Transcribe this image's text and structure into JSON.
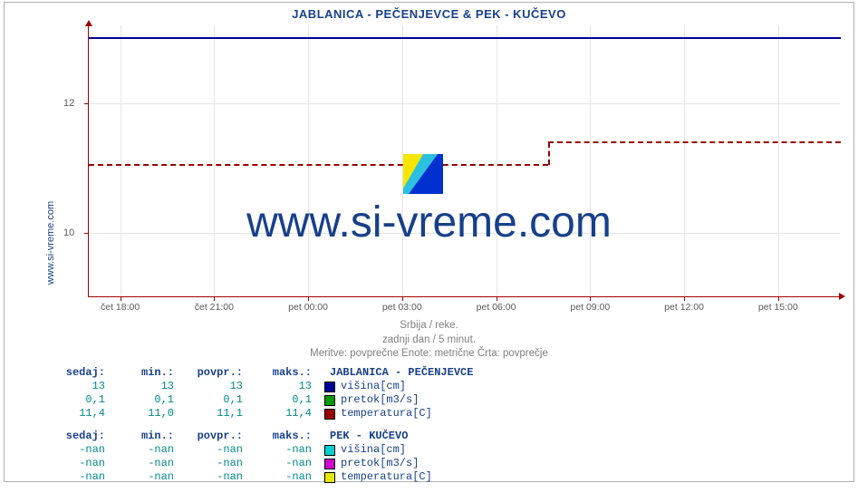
{
  "title": "JABLANICA -  PEČENJEVCE  &  PEK -  KUČEVO",
  "ylabel_side": "www.si-vreme.com",
  "watermark_text": "www.si-vreme.com",
  "watermark_colors": {
    "yellow": "#f7e600",
    "cyan": "#2cc0e0",
    "blue": "#0030cf"
  },
  "subtitle": {
    "line1": "Srbija / reke.",
    "line2": "zadnji dan / 5 minut.",
    "line3": "Meritve: povprečne  Enote: metrične  Črta: povprečje"
  },
  "plot": {
    "y": {
      "min": 9,
      "max": 13.2,
      "ticks": [
        10,
        12
      ],
      "tick_labels": [
        "10",
        "12"
      ]
    },
    "x": {
      "min": 0,
      "max": 1440,
      "ticks": [
        60,
        240,
        420,
        600,
        780,
        960,
        1140,
        1320
      ],
      "tick_labels": [
        "čet 18:00",
        "čet 21:00",
        "pet 00:00",
        "pet 03:00",
        "pet 06:00",
        "pet 09:00",
        "pet 12:00",
        "pet 15:00"
      ]
    },
    "grid_color": "#e6e6e6",
    "axis_color": "#a00000",
    "series": [
      {
        "name": "visina-line",
        "color": "#000099",
        "style": "solid",
        "segments": [
          {
            "x0": 0,
            "x1": 1440,
            "y": 13
          }
        ]
      },
      {
        "name": "temperatura-line",
        "color": "#990000",
        "style": "dashed",
        "segments": [
          {
            "x0": 0,
            "x1": 880,
            "y": 11.05
          },
          {
            "x0": 880,
            "x1": 1440,
            "y": 11.4
          }
        ]
      }
    ]
  },
  "columns": [
    "sedaj:",
    "min.:",
    "povpr.:",
    "maks.:"
  ],
  "stations": [
    {
      "name": "JABLANICA -  PEČENJEVCE",
      "rows": [
        {
          "vals": [
            "13",
            "13",
            "13",
            "13"
          ],
          "swatch": "#000099",
          "label": "višina[cm]"
        },
        {
          "vals": [
            "0,1",
            "0,1",
            "0,1",
            "0,1"
          ],
          "swatch": "#009900",
          "label": "pretok[m3/s]"
        },
        {
          "vals": [
            "11,4",
            "11,0",
            "11,1",
            "11,4"
          ],
          "swatch": "#990000",
          "label": "temperatura[C]"
        }
      ]
    },
    {
      "name": "PEK -  KUČEVO",
      "rows": [
        {
          "vals": [
            "-nan",
            "-nan",
            "-nan",
            "-nan"
          ],
          "swatch": "#00d0d0",
          "label": "višina[cm]"
        },
        {
          "vals": [
            "-nan",
            "-nan",
            "-nan",
            "-nan"
          ],
          "swatch": "#d000d0",
          "label": "pretok[m3/s]"
        },
        {
          "vals": [
            "-nan",
            "-nan",
            "-nan",
            "-nan"
          ],
          "swatch": "#e6e600",
          "label": "temperatura[C]"
        }
      ]
    }
  ]
}
